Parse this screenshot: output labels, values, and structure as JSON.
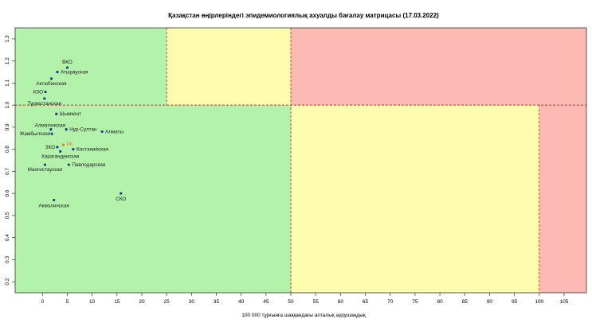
{
  "chart_data": {
    "type": "scatter",
    "title": "Қазақстан өңірлеріндегі эпидемиологиялық ахуалды бағалау матрицасы  (17.03.2022)",
    "xlabel": "100 000 тұрғынға шаққандағы апталық аурушаңдық",
    "ylabel": "",
    "xlim": [
      -5.5,
      109.5
    ],
    "ylim": [
      0.15,
      1.35
    ],
    "x_ticks": [
      "0",
      "5",
      "10",
      "15",
      "20",
      "25",
      "30",
      "35",
      "40",
      "45",
      "50",
      "55",
      "60",
      "65",
      "70",
      "75",
      "80",
      "85",
      "90",
      "95",
      "100",
      "105"
    ],
    "x_tick_values": [
      0,
      5,
      10,
      15,
      20,
      25,
      30,
      35,
      40,
      45,
      50,
      55,
      60,
      65,
      70,
      75,
      80,
      85,
      90,
      95,
      100,
      105
    ],
    "y_ticks": [
      "0.2",
      "0.3",
      "0.4",
      "0.5",
      "0.6",
      "0.7",
      "0.8",
      "0.9",
      "1.0",
      "1.1",
      "1.2",
      "1.3"
    ],
    "y_tick_values": [
      0.2,
      0.3,
      0.4,
      0.5,
      0.6,
      0.7,
      0.8,
      0.9,
      1.0,
      1.1,
      1.2,
      1.3
    ],
    "grid": false,
    "zones": [
      {
        "x0": -5.5,
        "x1": 25,
        "y0": 1.0,
        "y1": 1.35,
        "color": "#b2f2aa"
      },
      {
        "x0": 25,
        "x1": 50,
        "y0": 1.0,
        "y1": 1.35,
        "color": "#fdfdad"
      },
      {
        "x0": 50,
        "x1": 109.5,
        "y0": 1.0,
        "y1": 1.35,
        "color": "#fdb9b3"
      },
      {
        "x0": -5.5,
        "x1": 50,
        "y0": 0.15,
        "y1": 1.0,
        "color": "#b2f2aa"
      },
      {
        "x0": 50,
        "x1": 100,
        "y0": 0.15,
        "y1": 1.0,
        "color": "#fdfdad"
      },
      {
        "x0": 100,
        "x1": 109.5,
        "y0": 0.15,
        "y1": 1.0,
        "color": "#fdb9b3"
      }
    ],
    "threshold_lines": {
      "x": [
        25,
        50,
        100
      ],
      "y": [
        1.0
      ],
      "color": "#c0392b"
    },
    "points": [
      {
        "label": "ВКО",
        "x": 5.0,
        "y": 1.17,
        "color": "#1f3a93"
      },
      {
        "label": "Атырауская",
        "x": 3.0,
        "y": 1.15,
        "color": "#1f3a93"
      },
      {
        "label": "Актюбинская",
        "x": 1.8,
        "y": 1.12,
        "color": "#1f3a93"
      },
      {
        "label": "КЗО",
        "x": 0.6,
        "y": 1.06,
        "color": "#1f3a93"
      },
      {
        "label": "Туркестанская",
        "x": 0.4,
        "y": 1.03,
        "color": "#1f3a93"
      },
      {
        "label": "Шымкент",
        "x": 2.8,
        "y": 0.96,
        "color": "#1f3a93"
      },
      {
        "label": "Алматинская",
        "x": 1.7,
        "y": 0.89,
        "color": "#1f3a93"
      },
      {
        "label": "Нур-Султан",
        "x": 4.8,
        "y": 0.89,
        "color": "#1f3a93"
      },
      {
        "label": "Алматы",
        "x": 12.0,
        "y": 0.88,
        "color": "#1f3a93"
      },
      {
        "label": "Жамбылская",
        "x": 1.9,
        "y": 0.87,
        "color": "#1f3a93"
      },
      {
        "label": "РК",
        "x": 4.2,
        "y": 0.82,
        "color": "#e67e22"
      },
      {
        "label": "ЗКО",
        "x": 3.0,
        "y": 0.81,
        "color": "#1f3a93"
      },
      {
        "label": "Костанайская",
        "x": 6.2,
        "y": 0.8,
        "color": "#1f3a93"
      },
      {
        "label": "Карагандинская",
        "x": 3.6,
        "y": 0.79,
        "color": "#1f3a93"
      },
      {
        "label": "Мангистауская",
        "x": 0.5,
        "y": 0.73,
        "color": "#1f3a93"
      },
      {
        "label": "Павлодарская",
        "x": 5.3,
        "y": 0.73,
        "color": "#1f3a93"
      },
      {
        "label": "СКО",
        "x": 15.8,
        "y": 0.6,
        "color": "#1f3a93"
      },
      {
        "label": "Акмолинская",
        "x": 2.3,
        "y": 0.57,
        "color": "#1f3a93"
      }
    ]
  }
}
